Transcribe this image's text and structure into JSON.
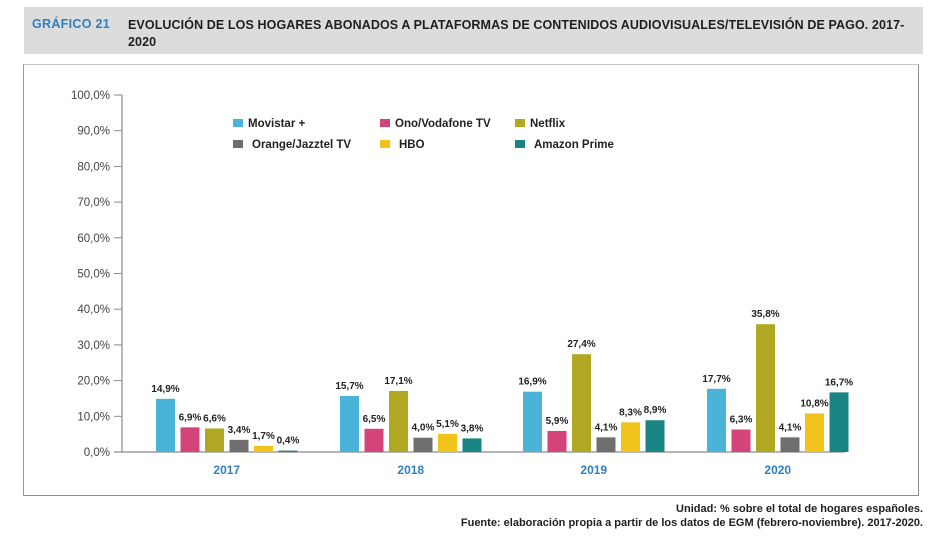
{
  "header": {
    "figure_number": "GRÁFICO  21",
    "title": "EVOLUCIÓN DE LOS HOGARES ABONADOS A PLATAFORMAS DE CONTENIDOS AUDIOVISUALES/TELEVISIÓN DE PAGO. 2017-2020"
  },
  "footer": {
    "unit": "Unidad: % sobre el total de hogares españoles.",
    "source": "Fuente: elaboración propia a partir de los datos de EGM (febrero-noviembre). 2017-2020."
  },
  "chart_data": {
    "type": "bar",
    "title": "Evolución de los hogares abonados a plataformas de contenidos audiovisuales/televisión de pago. 2017-2020",
    "xlabel": "",
    "ylabel": "",
    "ylim": [
      0,
      100
    ],
    "y_ticks": [
      0,
      10,
      20,
      30,
      40,
      50,
      60,
      70,
      80,
      90,
      100
    ],
    "y_tick_labels": [
      "0,0%",
      "10,0%",
      "20,0%",
      "30,0%",
      "40,0%",
      "50,0%",
      "60,0%",
      "70,0%",
      "80,0%",
      "90,0%",
      "100,0%"
    ],
    "grid": false,
    "legend_position": "top",
    "categories": [
      "2017",
      "2018",
      "2019",
      "2020"
    ],
    "series": [
      {
        "name": "Movistar +",
        "color": "#4ab3d8",
        "values": [
          14.9,
          15.7,
          16.9,
          17.7
        ],
        "labels": [
          "14,9%",
          "15,7%",
          "16,9%",
          "17,7%"
        ]
      },
      {
        "name": "Ono/Vodafone TV",
        "color": "#d4437a",
        "values": [
          6.9,
          6.5,
          5.9,
          6.3
        ],
        "labels": [
          "6,9%",
          "6,5%",
          "5,9%",
          "6,3%"
        ]
      },
      {
        "name": "Netflix",
        "color": "#b0a822",
        "values": [
          6.6,
          17.1,
          27.4,
          35.8
        ],
        "labels": [
          "6,6%",
          "17,1%",
          "27,4%",
          "35,8%"
        ]
      },
      {
        "name": "Orange/Jazztel TV",
        "color": "#6f6f6f",
        "values": [
          3.4,
          4.0,
          4.1,
          4.1
        ],
        "labels": [
          "3,4%",
          "4,0%",
          "4,1%",
          "4,1%"
        ]
      },
      {
        "name": "HBO",
        "color": "#f0c31a",
        "values": [
          1.7,
          5.1,
          8.3,
          10.8
        ],
        "labels": [
          "1,7%",
          "5,1%",
          "8,3%",
          "10,8%"
        ]
      },
      {
        "name": "Amazon Prime",
        "color": "#188483",
        "values": [
          0.4,
          3.8,
          8.9,
          16.7
        ],
        "labels": [
          "0,4%",
          "3,8%",
          "8,9%",
          "16,7%"
        ]
      }
    ],
    "legend_order": [
      0,
      1,
      2,
      3,
      4,
      5
    ]
  }
}
